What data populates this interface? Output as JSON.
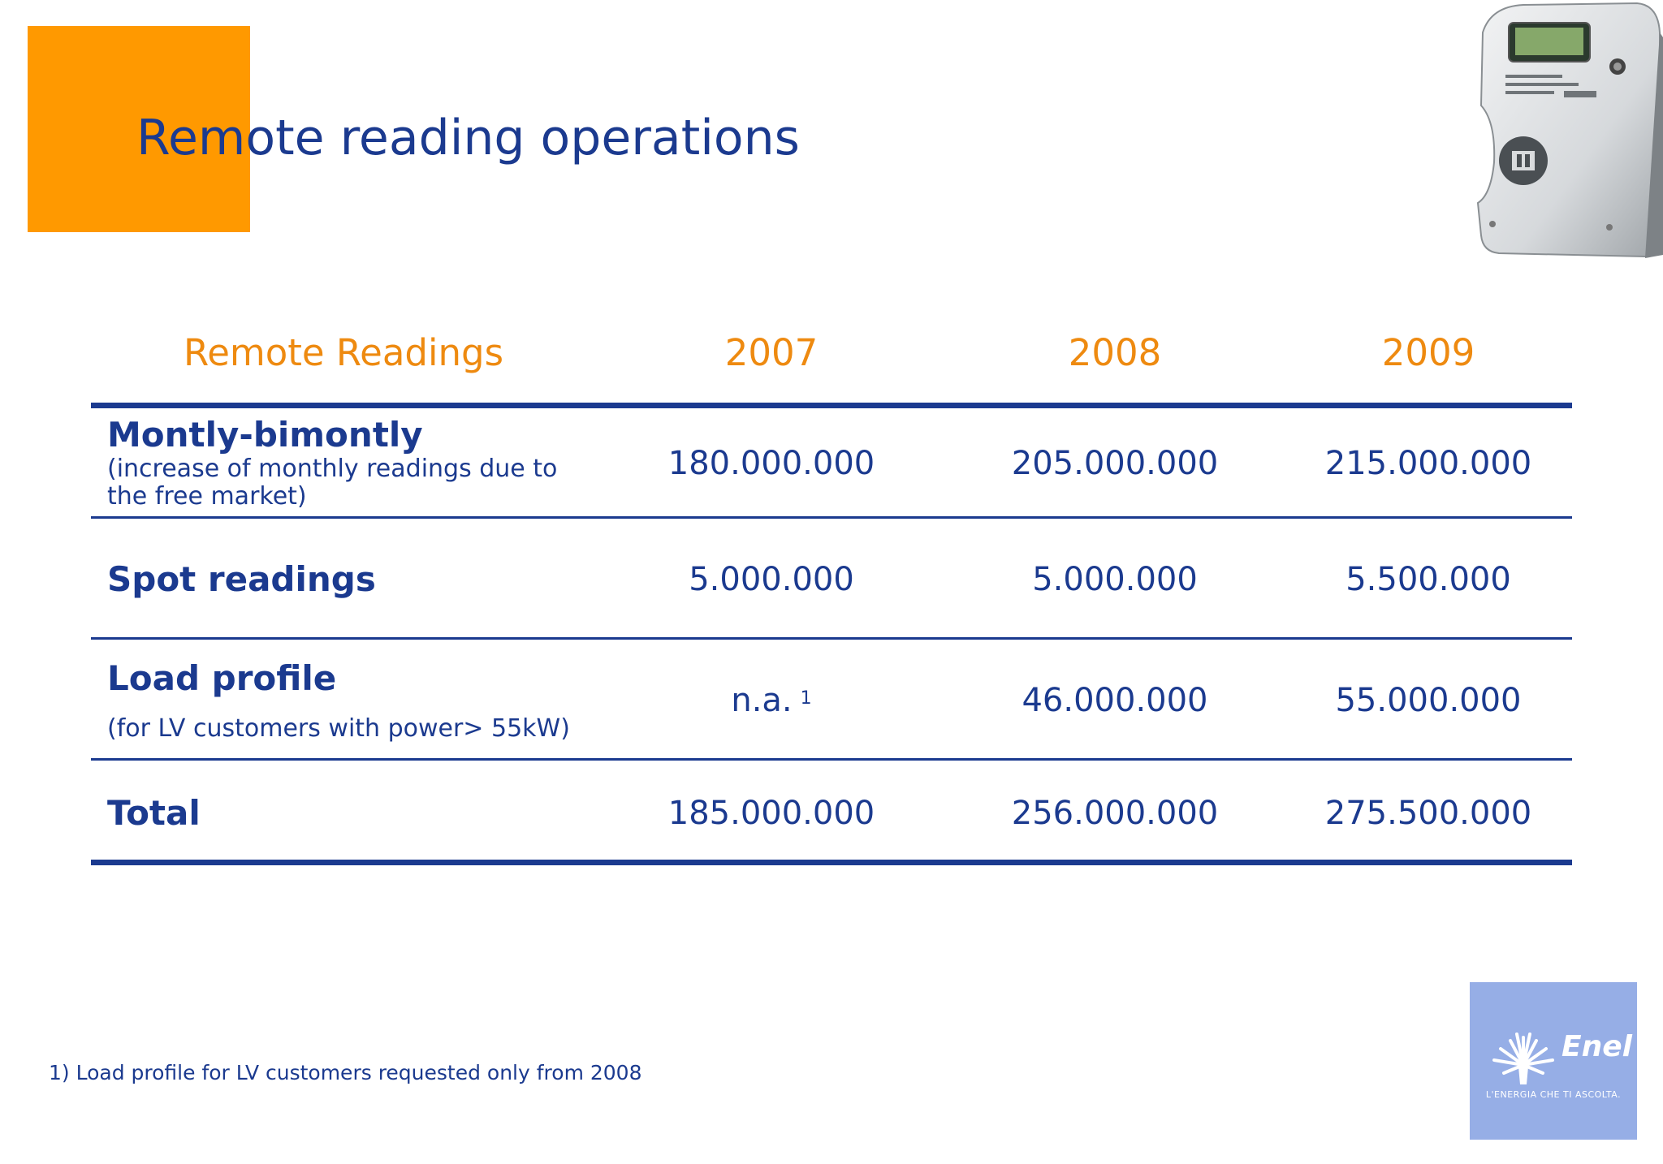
{
  "slide": {
    "title": "Remote reading operations",
    "accent_color": "#ff9900",
    "text_color": "#1b3a8f",
    "header_color": "#ee8a10"
  },
  "table": {
    "header": {
      "label": "Remote Readings",
      "years": [
        "2007",
        "2008",
        "2009"
      ]
    },
    "rows": [
      {
        "label": "Montly-bimontly",
        "sub": [
          "(increase of monthly readings due to",
          "the free market)"
        ],
        "values": [
          "180.000.000",
          "205.000.000",
          "215.000.000"
        ]
      },
      {
        "label": "Spot readings",
        "sub": [],
        "values": [
          "5.000.000",
          "5.000.000",
          "5.500.000"
        ]
      },
      {
        "label": "Load profile",
        "sub": [
          "(for LV customers with power> 55kW)"
        ],
        "values": [
          "n.a.",
          "46.000.000",
          "55.000.000"
        ],
        "note_mark": "1"
      },
      {
        "label": "Total",
        "sub": [],
        "values": [
          "185.000.000",
          "256.000.000",
          "275.500.000"
        ]
      }
    ]
  },
  "footnote": "1) Load profile for LV customers requested only from 2008",
  "logo": {
    "name": "Enel",
    "tagline": "L'ENERGIA CHE TI ASCOLTA.",
    "background": "#96aee6"
  },
  "icons": {
    "meter": "electric-meter-icon",
    "logo": "enel-flower-logo-icon"
  }
}
